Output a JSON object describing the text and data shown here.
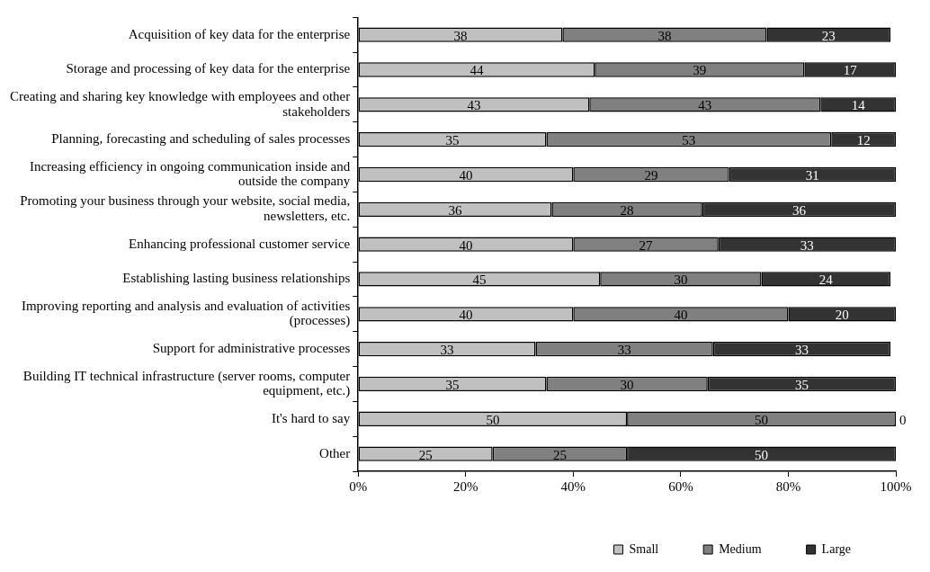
{
  "chart_data": {
    "type": "bar",
    "orientation": "horizontal",
    "stacked": true,
    "data_labels": true,
    "grid": false,
    "legend": "bottom right",
    "categories": [
      "Acquisition of key data for the enterprise",
      "Storage and processing of key data for the enterprise",
      "Creating and sharing key knowledge with employees and other stakeholders",
      "Planning, forecasting and scheduling of sales processes",
      "Increasing efficiency in ongoing communication inside and outside the company",
      "Promoting your business through your website, social media, newsletters, etc.",
      "Enhancing professional customer service",
      "Establishing lasting business relationships",
      "Improving reporting and analysis and evaluation of activities (processes)",
      "Support for administrative processes",
      "Building IT technical infrastructure (server rooms, computer equipment, etc.)",
      "It's hard to say",
      "Other"
    ],
    "series": [
      {
        "name": "Small",
        "color": "#c0c0c0",
        "values": [
          38,
          44,
          43,
          35,
          40,
          36,
          40,
          45,
          40,
          33,
          35,
          50,
          25
        ]
      },
      {
        "name": "Medium",
        "color": "#808080",
        "values": [
          38,
          39,
          43,
          53,
          29,
          28,
          27,
          30,
          40,
          33,
          30,
          50,
          25
        ]
      },
      {
        "name": "Large",
        "color": "#333333",
        "values": [
          23,
          17,
          14,
          12,
          31,
          36,
          33,
          24,
          20,
          33,
          35,
          0,
          50
        ]
      }
    ],
    "xlim": [
      0,
      100
    ],
    "xticks": [
      {
        "value": 0,
        "label": "0%"
      },
      {
        "value": 20,
        "label": "20%"
      },
      {
        "value": 40,
        "label": "40%"
      },
      {
        "value": 60,
        "label": "60%"
      },
      {
        "value": 80,
        "label": "80%"
      },
      {
        "value": 100,
        "label": "100%"
      }
    ]
  }
}
